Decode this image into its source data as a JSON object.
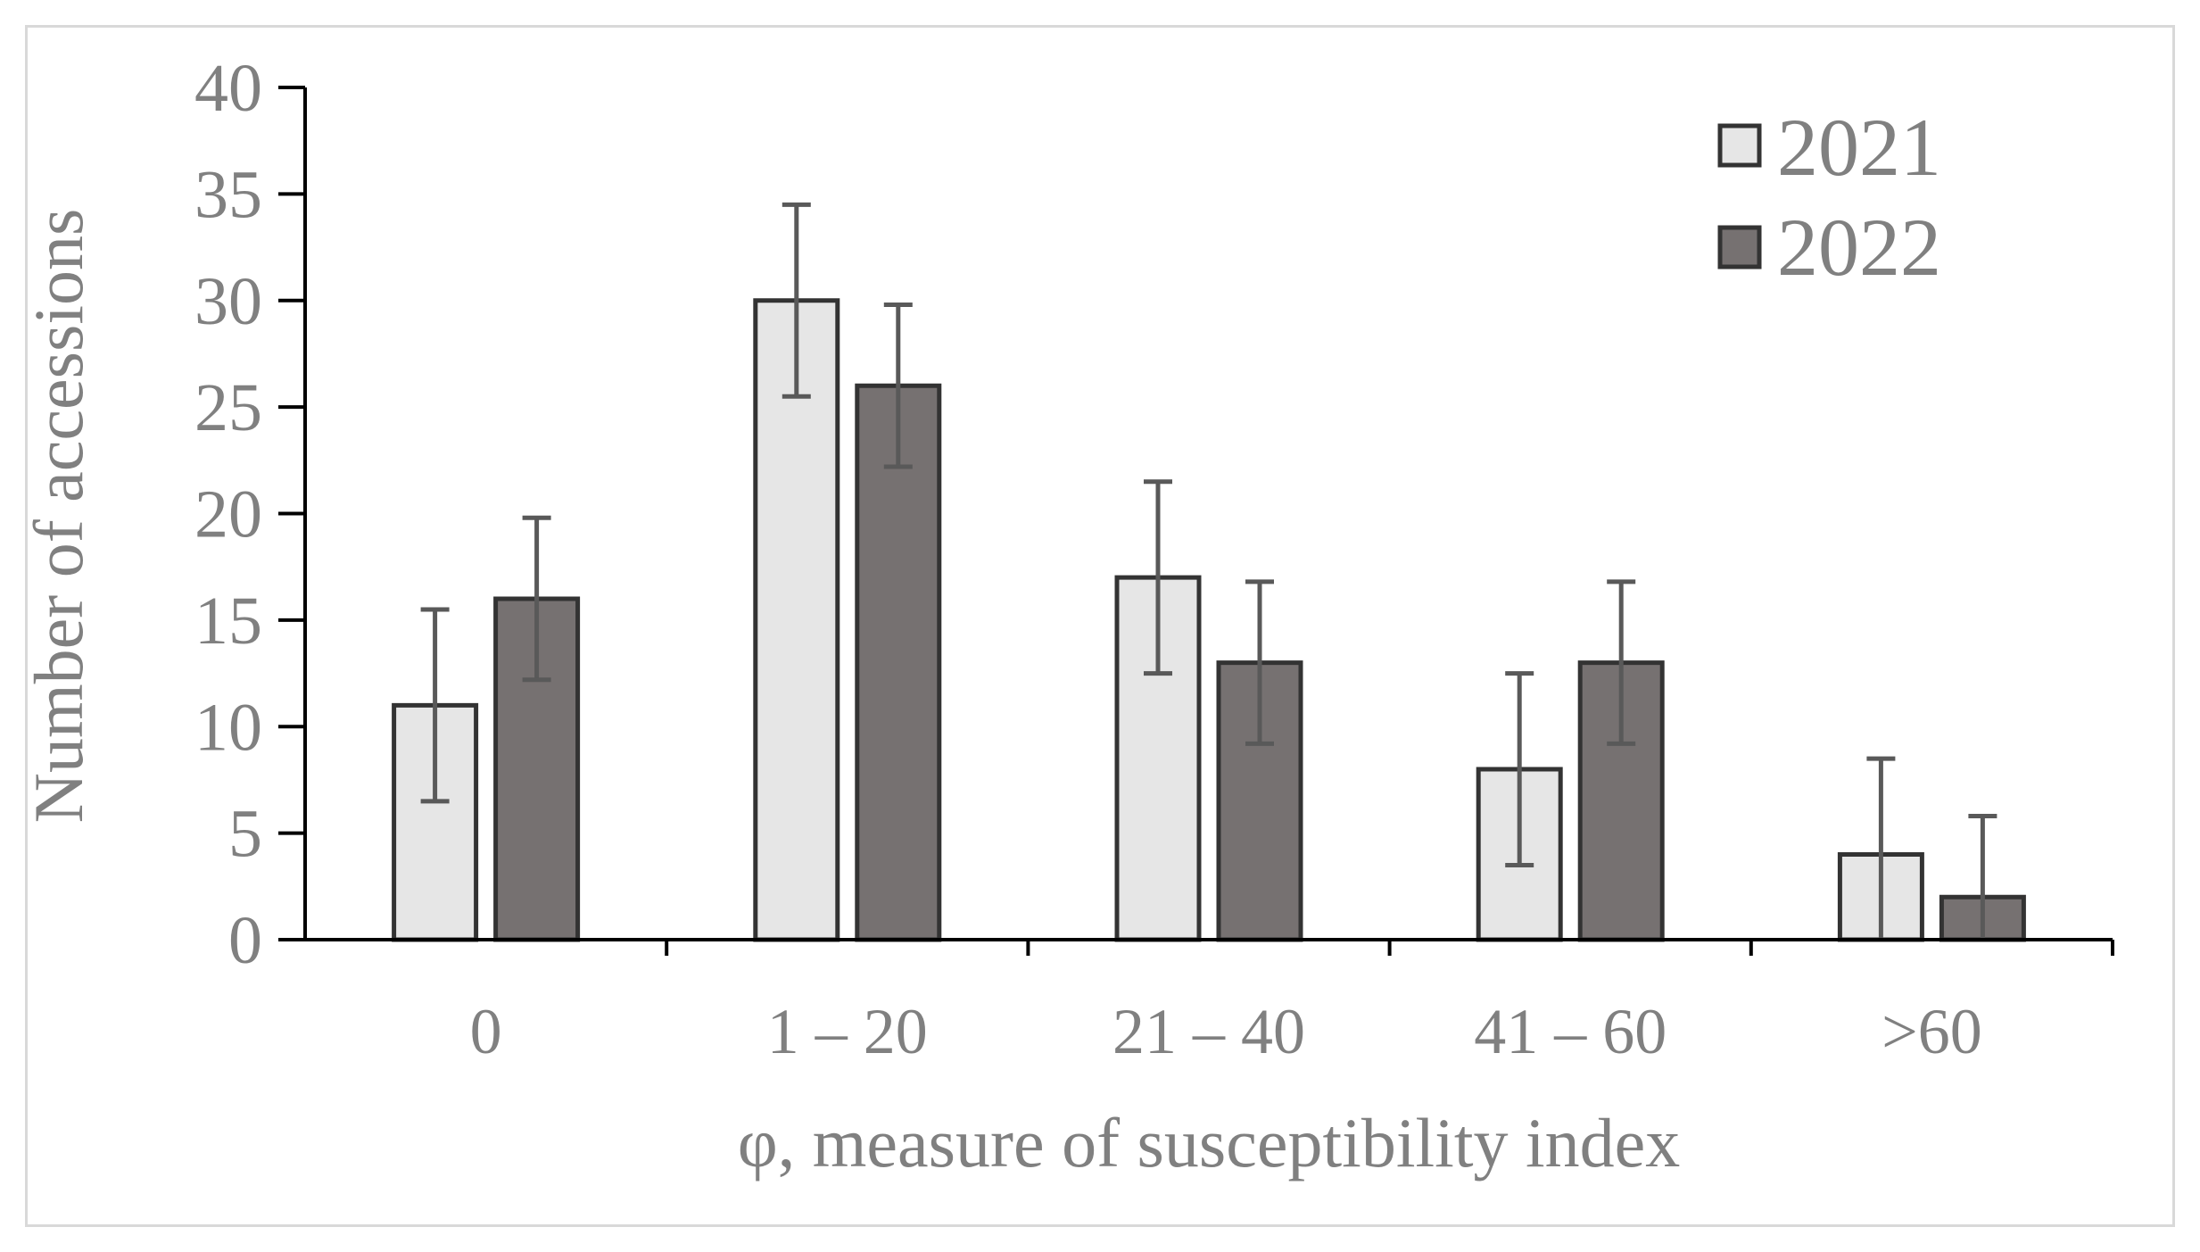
{
  "chart_data": {
    "type": "bar",
    "title": "",
    "xlabel": "φ, measure of susceptibility index",
    "ylabel": "Number of accessions",
    "categories": [
      "0",
      "1 – 20",
      "21 – 40",
      "41 – 60",
      ">60"
    ],
    "ylim": [
      0,
      40
    ],
    "yticks": [
      0,
      5,
      10,
      15,
      20,
      25,
      30,
      35,
      40
    ],
    "grid": false,
    "legend_position": "top-right",
    "series": [
      {
        "name": "2021",
        "values": [
          11,
          30,
          17,
          8,
          4
        ],
        "error_low": [
          6.5,
          25.5,
          12.5,
          3.5,
          0
        ],
        "error_high": [
          15.5,
          34.5,
          21.5,
          12.5,
          8.5
        ],
        "color": "#e6e6e6"
      },
      {
        "name": "2022",
        "values": [
          16,
          26,
          13,
          13,
          2
        ],
        "error_low": [
          12.2,
          22.2,
          9.2,
          9.2,
          0
        ],
        "error_high": [
          19.8,
          29.8,
          16.8,
          16.8,
          5.8
        ],
        "color": "#767171"
      }
    ],
    "bar_edge_color": "#333333",
    "axis_color": "#000000",
    "errorbar_color": "#595959",
    "frame_color": "#d9d9d9"
  }
}
